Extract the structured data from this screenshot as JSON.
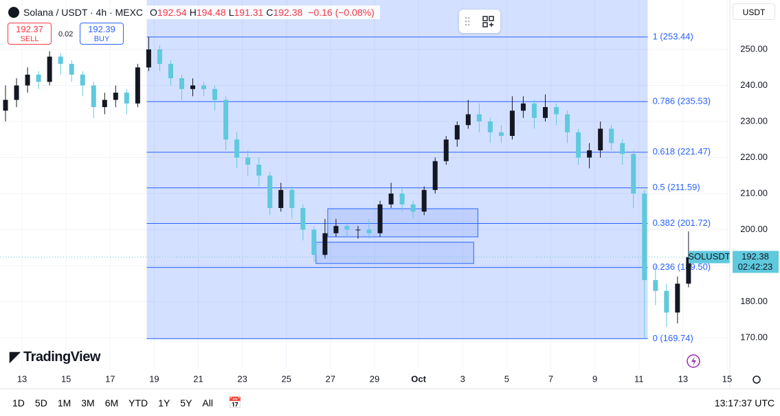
{
  "header": {
    "symbol": "Solana / USDT · 4h · MEXC",
    "ohlc": [
      {
        "letter": "O",
        "value": "192.54"
      },
      {
        "letter": "H",
        "value": "194.48"
      },
      {
        "letter": "L",
        "value": "191.31"
      },
      {
        "letter": "C",
        "value": "192.38"
      }
    ],
    "change": "−0.16 (−0.08%)",
    "sell": {
      "price": "192.37",
      "label": "SELL"
    },
    "spread": "0.02",
    "buy": {
      "price": "192.39",
      "label": "BUY"
    },
    "currency": "USDT",
    "logo": "TradingView"
  },
  "chart_data": {
    "type": "candlestick",
    "x": [
      -0.75,
      -0.25,
      0.25,
      0.75,
      1.25,
      1.75,
      2.25,
      2.75,
      3.25,
      3.75,
      4.25,
      4.75,
      5.25,
      5.75,
      6.25,
      6.75,
      7.25,
      7.75,
      8.25,
      8.75,
      9.25,
      9.75,
      10.25,
      10.75,
      11.25,
      11.75,
      12.25,
      12.75,
      13.25,
      13.75,
      14.25,
      14.75,
      15.25,
      15.75,
      16.25,
      16.75,
      17.25,
      17.75,
      18.25,
      18.75,
      19.25,
      19.75,
      20.25,
      20.75,
      21.25,
      21.75,
      22.25,
      22.75,
      23.25,
      23.75,
      24.25,
      24.75,
      25.25,
      25.75,
      26.25,
      26.75,
      27.25,
      27.75,
      28.25,
      28.75,
      29.25,
      29.75,
      30.25
    ],
    "open": [
      233,
      236,
      240,
      243,
      241,
      248,
      246,
      243,
      240,
      234,
      236,
      238,
      235,
      245,
      250,
      246,
      242,
      239,
      240,
      239,
      236,
      225,
      220,
      218,
      215,
      206,
      211,
      206,
      200,
      193,
      199,
      201,
      200,
      200,
      199,
      207,
      210,
      207,
      205,
      211,
      219,
      225,
      229,
      232,
      230,
      227,
      226,
      233,
      235,
      231,
      234,
      232,
      227,
      220,
      222,
      228,
      224,
      221,
      210,
      186,
      183,
      177,
      185
    ],
    "high": [
      240,
      242,
      245,
      244,
      249.5,
      249,
      247,
      244,
      241,
      238,
      240,
      239,
      246,
      253.44,
      251,
      247,
      243,
      242,
      241,
      240,
      237,
      227,
      222,
      220,
      216,
      213,
      212,
      207,
      201,
      203,
      203,
      202,
      201,
      203,
      208,
      213,
      212,
      208,
      212,
      220,
      226,
      230,
      236,
      235,
      231,
      229,
      237,
      237,
      236,
      237.5,
      235,
      233,
      228,
      224,
      230,
      229,
      225,
      222,
      211,
      190,
      185,
      187,
      199.5
    ],
    "low": [
      230,
      234,
      238,
      239,
      240,
      243,
      241,
      237,
      231,
      232,
      234,
      232,
      234,
      244,
      244,
      240,
      236,
      237,
      237,
      233,
      222,
      217,
      215,
      212,
      204,
      205,
      203,
      197,
      191,
      192,
      198,
      198,
      197.5,
      197.5,
      198,
      206,
      205,
      203,
      204,
      210,
      218,
      223,
      228,
      227,
      224,
      224,
      225,
      231,
      228,
      230,
      229,
      224,
      218,
      217,
      220,
      222,
      218,
      206,
      169.74,
      179,
      173,
      174,
      184
    ],
    "close": [
      236,
      240,
      243,
      241,
      248,
      246,
      243,
      240,
      234,
      236,
      238,
      235,
      245,
      250,
      246,
      242,
      239,
      240,
      239,
      236,
      225,
      220,
      218,
      215,
      206,
      211,
      206,
      200,
      193,
      199,
      201,
      200,
      200,
      199,
      207,
      210,
      207,
      205,
      211,
      219,
      225,
      229,
      232,
      230,
      227,
      226,
      233,
      235,
      231,
      234,
      232,
      227,
      220,
      222,
      228,
      224,
      221,
      210,
      186,
      183,
      177,
      185,
      192.38
    ],
    "up_color": "#131722",
    "down_color": "#5fc9de",
    "xlim": [
      -1,
      32.125
    ],
    "ylim": [
      161.24,
      263.71
    ],
    "xticks": [
      {
        "value": 0,
        "label": "13"
      },
      {
        "value": 2,
        "label": "15"
      },
      {
        "value": 4,
        "label": "17"
      },
      {
        "value": 6,
        "label": "19"
      },
      {
        "value": 8,
        "label": "21"
      },
      {
        "value": 10,
        "label": "23"
      },
      {
        "value": 12,
        "label": "25"
      },
      {
        "value": 14,
        "label": "27"
      },
      {
        "value": 16,
        "label": "29"
      },
      {
        "value": 18,
        "label": "Oct"
      },
      {
        "value": 20,
        "label": "3"
      },
      {
        "value": 22,
        "label": "5"
      },
      {
        "value": 24,
        "label": "7"
      },
      {
        "value": 26,
        "label": "9"
      },
      {
        "value": 28,
        "label": "11"
      },
      {
        "value": 30,
        "label": "13"
      },
      {
        "value": 32,
        "label": "15"
      }
    ],
    "yticks": [
      {
        "value": 170,
        "label": "170.00"
      },
      {
        "value": 180,
        "label": "180.00"
      },
      {
        "value": 190,
        "label": "190.00"
      },
      {
        "value": 200,
        "label": "200.00"
      },
      {
        "value": 210,
        "label": "210.00"
      },
      {
        "value": 220,
        "label": "220.00"
      },
      {
        "value": 230,
        "label": "230.00"
      },
      {
        "value": 240,
        "label": "240.00"
      },
      {
        "value": 250,
        "label": "250.00"
      }
    ],
    "grid": true,
    "last_price": {
      "value": 192.38,
      "ticker": "SOLUSDT",
      "label": "192.38",
      "countdown": "02:42:23",
      "color": "#5fc9de"
    },
    "fib": {
      "x0": 5.66,
      "x1": 28.4,
      "color": "#2962ff",
      "levels": [
        {
          "value": 253.44,
          "label": "1 (253.44)"
        },
        {
          "value": 235.53,
          "label": "0.786 (235.53)"
        },
        {
          "value": 221.47,
          "label": "0.618 (221.47)"
        },
        {
          "value": 211.59,
          "label": "0.5 (211.59)"
        },
        {
          "value": 201.72,
          "label": "0.382 (201.72)"
        },
        {
          "value": 189.5,
          "label": "0.236 (189.50)"
        },
        {
          "value": 169.74,
          "label": "0 (169.74)"
        }
      ]
    },
    "zones": [
      {
        "x0": 13.875,
        "x1": 20.69,
        "top": 205.8,
        "bottom": 198.0
      },
      {
        "x0": 13.34,
        "x1": 20.5,
        "top": 196.5,
        "bottom": 190.6
      }
    ]
  },
  "toolbar": {
    "ranges": [
      "1D",
      "5D",
      "1M",
      "3M",
      "6M",
      "YTD",
      "1Y",
      "5Y",
      "All"
    ],
    "clock": "13:17:37 UTC"
  }
}
